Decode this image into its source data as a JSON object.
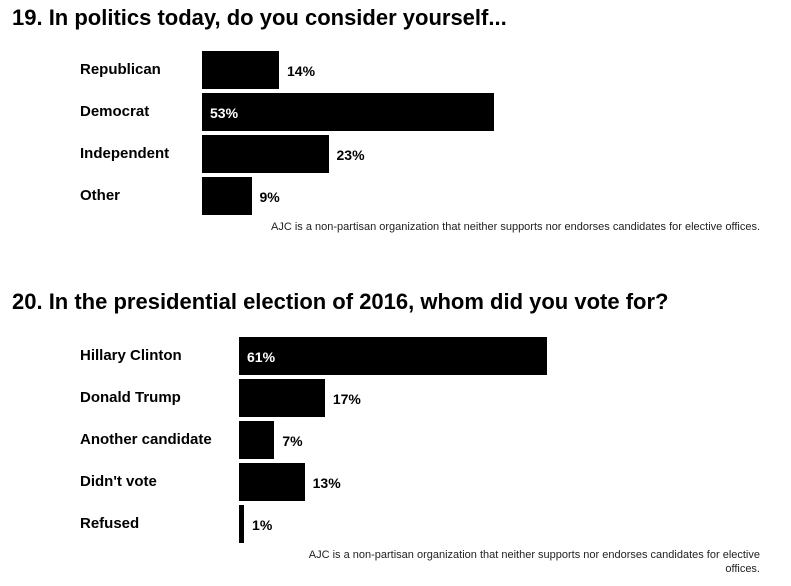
{
  "chart_data": [
    {
      "type": "bar",
      "orientation": "horizontal",
      "title": "19. In politics today, do you consider yourself...",
      "categories": [
        "Republican",
        "Democrat",
        "Independent",
        "Other"
      ],
      "values": [
        14,
        53,
        23,
        9
      ],
      "value_labels": [
        "14%",
        "53%",
        "23%",
        "9%"
      ],
      "bar_color": "#000000",
      "note": "AJC is a non-partisan organization that neither supports nor endorses candidates for elective offices."
    },
    {
      "type": "bar",
      "orientation": "horizontal",
      "title": "20. In the presidential election of 2016, whom did you vote for?",
      "categories": [
        "Hillary Clinton",
        "Donald Trump",
        "Another candidate",
        "Didn't vote",
        "Refused"
      ],
      "values": [
        61,
        17,
        7,
        13,
        1
      ],
      "value_labels": [
        "61%",
        "17%",
        "7%",
        "13%",
        "1%"
      ],
      "bar_color": "#000000",
      "note": "AJC is a non-partisan organization that neither supports nor endorses candidates for elective offices."
    }
  ]
}
